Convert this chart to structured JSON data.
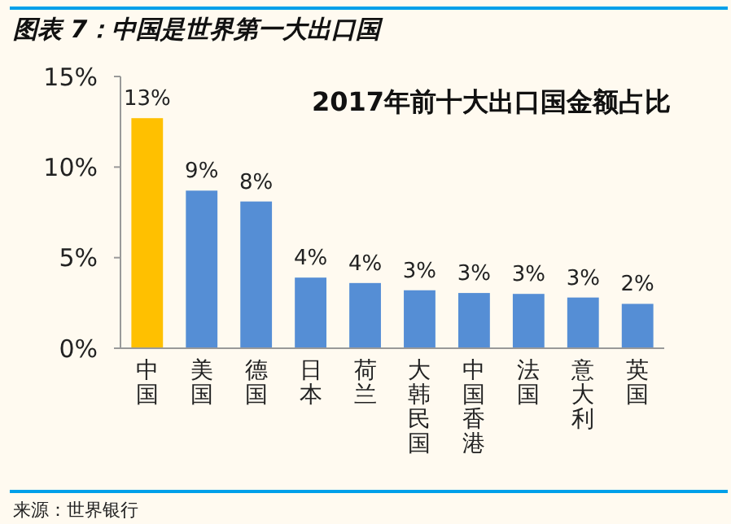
{
  "chart_data": {
    "type": "bar",
    "title": "图表 7：中国是世界第一大出口国",
    "subtitle": "2017年前十大出口国金额占比",
    "categories": [
      "中国",
      "美国",
      "德国",
      "日本",
      "荷兰",
      "大韩民国",
      "中国香港",
      "法国",
      "意大利",
      "英国"
    ],
    "values": [
      12.7,
      8.7,
      8.1,
      3.9,
      3.6,
      3.2,
      3.05,
      3.0,
      2.8,
      2.45
    ],
    "colors": [
      "#ffc000",
      "#558ed5",
      "#558ed5",
      "#558ed5",
      "#558ed5",
      "#558ed5",
      "#558ed5",
      "#558ed5",
      "#558ed5",
      "#558ed5"
    ],
    "value_labels": [
      "13%",
      "9%",
      "8%",
      "4%",
      "4%",
      "3%",
      "3%",
      "3%",
      "3%",
      "2%"
    ],
    "ylim": [
      0,
      15
    ],
    "yticks": [
      {
        "value": 0,
        "label": "0%"
      },
      {
        "value": 5,
        "label": "5%"
      },
      {
        "value": 10,
        "label": "10%"
      },
      {
        "value": 15,
        "label": "15%"
      }
    ],
    "grid": false,
    "annotations": [
      "来源：世界银行"
    ]
  }
}
